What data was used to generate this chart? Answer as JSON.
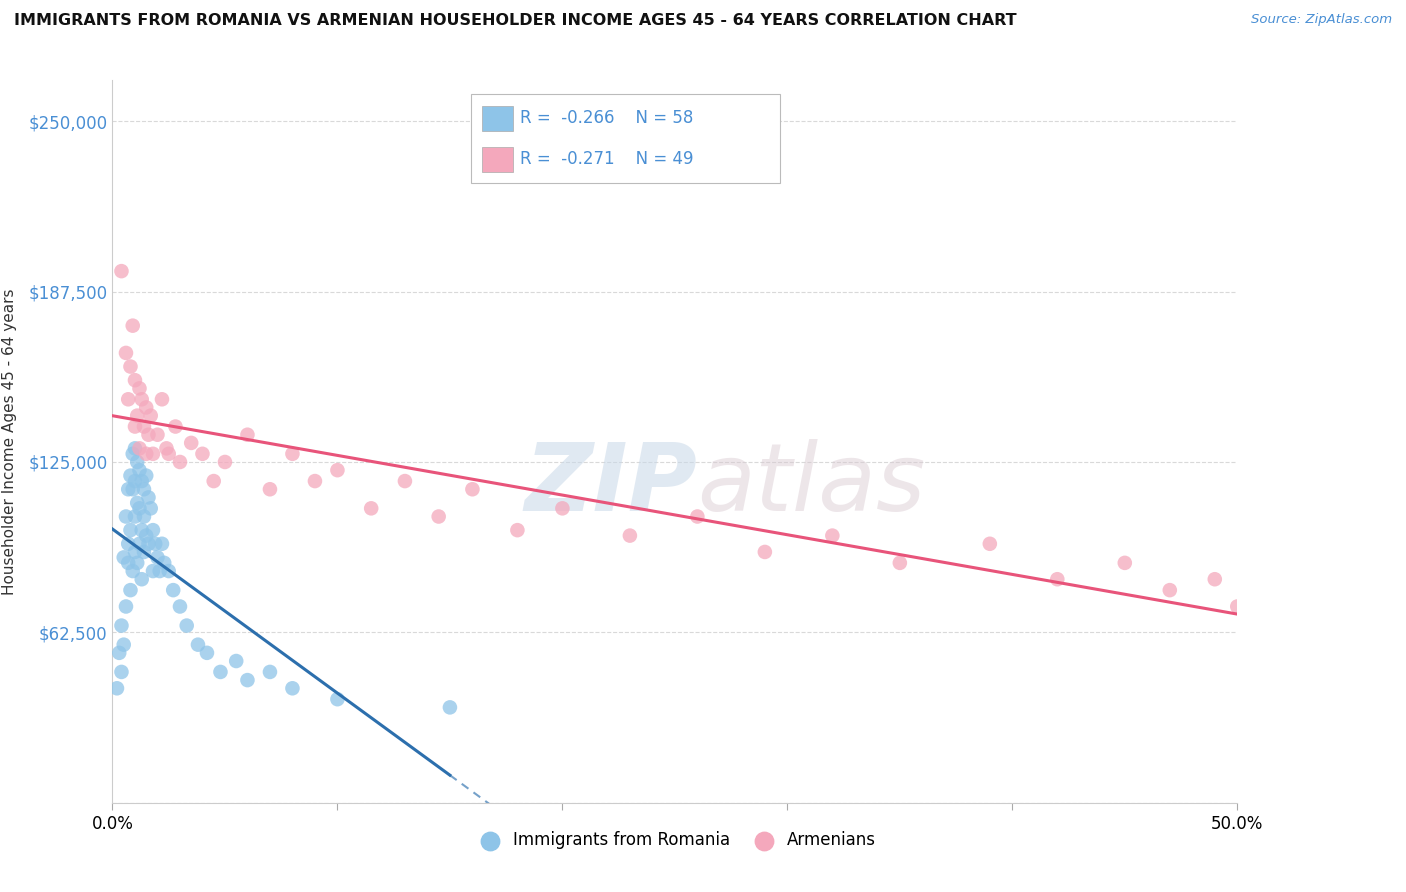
{
  "title": "IMMIGRANTS FROM ROMANIA VS ARMENIAN HOUSEHOLDER INCOME AGES 45 - 64 YEARS CORRELATION CHART",
  "source": "Source: ZipAtlas.com",
  "ylabel": "Householder Income Ages 45 - 64 years",
  "xlim": [
    0.0,
    0.5
  ],
  "ylim": [
    0,
    265000
  ],
  "yticks": [
    0,
    62500,
    125000,
    187500,
    250000
  ],
  "ytick_labels": [
    "",
    "$62,500",
    "$125,000",
    "$187,500",
    "$250,000"
  ],
  "xticks": [
    0.0,
    0.1,
    0.2,
    0.3,
    0.4,
    0.5
  ],
  "xtick_labels": [
    "0.0%",
    "",
    "",
    "",
    "",
    "50.0%"
  ],
  "legend_r1": "-0.266",
  "legend_n1": "58",
  "legend_r2": "-0.271",
  "legend_n2": "49",
  "blue_color": "#8ec4e8",
  "pink_color": "#f4a8bc",
  "blue_line_color": "#2c6fad",
  "pink_line_color": "#e8547a",
  "watermark_zip": "ZIP",
  "watermark_atlas": "atlas",
  "romania_x": [
    0.002,
    0.003,
    0.004,
    0.004,
    0.005,
    0.005,
    0.006,
    0.006,
    0.007,
    0.007,
    0.007,
    0.008,
    0.008,
    0.008,
    0.009,
    0.009,
    0.009,
    0.01,
    0.01,
    0.01,
    0.01,
    0.011,
    0.011,
    0.011,
    0.012,
    0.012,
    0.012,
    0.013,
    0.013,
    0.013,
    0.014,
    0.014,
    0.014,
    0.015,
    0.015,
    0.016,
    0.016,
    0.017,
    0.018,
    0.018,
    0.019,
    0.02,
    0.021,
    0.022,
    0.023,
    0.025,
    0.027,
    0.03,
    0.033,
    0.038,
    0.042,
    0.048,
    0.055,
    0.06,
    0.07,
    0.08,
    0.1,
    0.15
  ],
  "romania_y": [
    42000,
    55000,
    65000,
    48000,
    90000,
    58000,
    105000,
    72000,
    115000,
    88000,
    95000,
    120000,
    100000,
    78000,
    128000,
    115000,
    85000,
    130000,
    118000,
    105000,
    92000,
    125000,
    110000,
    88000,
    122000,
    108000,
    95000,
    118000,
    100000,
    82000,
    115000,
    105000,
    92000,
    120000,
    98000,
    112000,
    95000,
    108000,
    100000,
    85000,
    95000,
    90000,
    85000,
    95000,
    88000,
    85000,
    78000,
    72000,
    65000,
    58000,
    55000,
    48000,
    52000,
    45000,
    48000,
    42000,
    38000,
    35000
  ],
  "armenian_x": [
    0.004,
    0.006,
    0.007,
    0.008,
    0.009,
    0.01,
    0.01,
    0.011,
    0.012,
    0.012,
    0.013,
    0.014,
    0.015,
    0.015,
    0.016,
    0.017,
    0.018,
    0.02,
    0.022,
    0.024,
    0.025,
    0.028,
    0.03,
    0.035,
    0.04,
    0.045,
    0.05,
    0.06,
    0.07,
    0.08,
    0.09,
    0.1,
    0.115,
    0.13,
    0.145,
    0.16,
    0.18,
    0.2,
    0.23,
    0.26,
    0.29,
    0.32,
    0.35,
    0.39,
    0.42,
    0.45,
    0.47,
    0.49,
    0.5
  ],
  "armenian_y": [
    195000,
    165000,
    148000,
    160000,
    175000,
    155000,
    138000,
    142000,
    152000,
    130000,
    148000,
    138000,
    145000,
    128000,
    135000,
    142000,
    128000,
    135000,
    148000,
    130000,
    128000,
    138000,
    125000,
    132000,
    128000,
    118000,
    125000,
    135000,
    115000,
    128000,
    118000,
    122000,
    108000,
    118000,
    105000,
    115000,
    100000,
    108000,
    98000,
    105000,
    92000,
    98000,
    88000,
    95000,
    82000,
    88000,
    78000,
    82000,
    72000
  ]
}
